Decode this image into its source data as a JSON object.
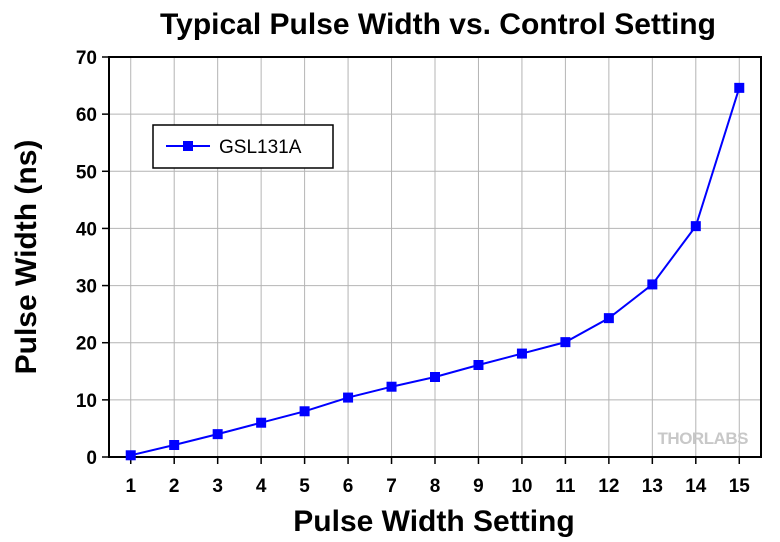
{
  "chart_data": {
    "type": "line",
    "title": "Typical Pulse Width vs. Control Setting",
    "xlabel": "Pulse Width Setting",
    "ylabel": "Pulse Width (ns)",
    "x": [
      1,
      2,
      3,
      4,
      5,
      6,
      7,
      8,
      9,
      10,
      11,
      12,
      13,
      14,
      15
    ],
    "xlim": [
      0.5,
      15.5
    ],
    "ylim": [
      0,
      70
    ],
    "yticks": [
      0,
      10,
      20,
      30,
      40,
      50,
      60,
      70
    ],
    "xticks": [
      1,
      2,
      3,
      4,
      5,
      6,
      7,
      8,
      9,
      10,
      11,
      12,
      13,
      14,
      15
    ],
    "grid": true,
    "legend_position": "top-left",
    "series": [
      {
        "name": "GSL131A",
        "color": "#0000ff",
        "marker": "square",
        "values": [
          0.3,
          2.1,
          4.0,
          6.0,
          8.0,
          10.4,
          12.3,
          14.0,
          16.1,
          18.1,
          20.1,
          24.3,
          30.2,
          40.4,
          64.6
        ]
      }
    ]
  },
  "watermark": "THORLABS"
}
